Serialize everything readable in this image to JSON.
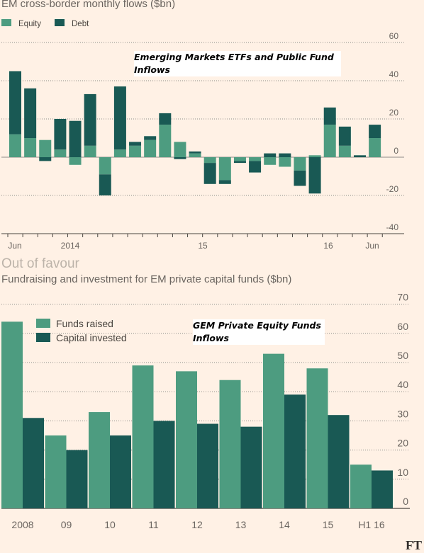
{
  "chart_data": [
    {
      "type": "bar",
      "stacked": true,
      "subtitle": "EM cross-border monthly flows ($bn)",
      "annotation": "Emerging Markets ETFs and Public Fund Inflows",
      "legend": [
        "Equity",
        "Debt"
      ],
      "legend_position": "top-left",
      "colors": {
        "Equity": "#4d9c80",
        "Debt": "#195954"
      },
      "y_ticks": [
        "60",
        "40",
        "20",
        "0",
        "-20",
        "-40"
      ],
      "ylim": [
        -40,
        60
      ],
      "x_tick_labels": [
        "Jun",
        "2014",
        "15",
        "16",
        "Jun"
      ],
      "series": [
        {
          "name": "Equity",
          "values": [
            12,
            10,
            9,
            4,
            -4,
            6,
            -9,
            4,
            6,
            9,
            17,
            8,
            2,
            -3,
            -12,
            -2,
            -2,
            -4,
            -5,
            -7,
            1,
            17,
            6,
            0,
            10
          ]
        },
        {
          "name": "Debt",
          "values": [
            33,
            26,
            -2,
            16,
            19,
            27,
            -11,
            33,
            2,
            2,
            6,
            -1,
            1,
            -11,
            -2,
            -1,
            -6,
            2,
            2,
            -8,
            -19,
            9,
            10,
            1,
            7
          ]
        }
      ]
    },
    {
      "type": "bar",
      "title": "Out of favour",
      "subtitle": "Fundraising and investment for EM private capital funds ($bn)",
      "annotation": "GEM Private Equity Funds Inflows",
      "categories": [
        "2008",
        "09",
        "10",
        "11",
        "12",
        "13",
        "14",
        "15",
        "H1 16"
      ],
      "y_ticks": [
        "70",
        "60",
        "50",
        "40",
        "30",
        "20",
        "10",
        "0"
      ],
      "ylim": [
        0,
        70
      ],
      "legend_position": "top-left",
      "colors": {
        "Funds raised": "#4d9c80",
        "Capital invested": "#195954"
      },
      "series": [
        {
          "name": "Funds raised",
          "values": [
            64,
            25,
            33,
            49,
            47,
            44,
            53,
            48,
            15
          ]
        },
        {
          "name": "Capital invested",
          "values": [
            31,
            20,
            25,
            30,
            29,
            28,
            39,
            32,
            13
          ]
        }
      ]
    }
  ],
  "logo": "FT"
}
